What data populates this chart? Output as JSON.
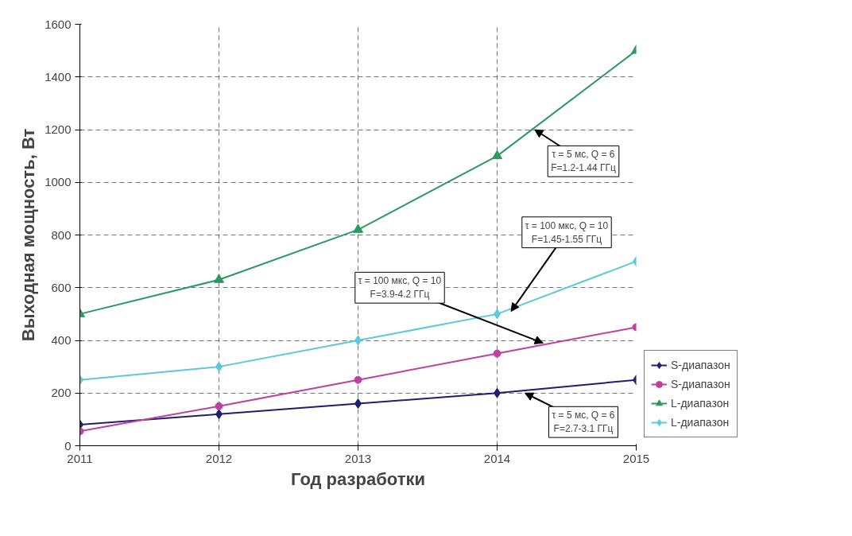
{
  "chart_data": {
    "type": "line",
    "xlabel": "Год разработки",
    "ylabel": "Выходная мощность, Вт",
    "x": [
      2011,
      2012,
      2013,
      2014,
      2015
    ],
    "series": [
      {
        "name": "S-диапазон",
        "color": "#1f1f6e",
        "marker": "diamond",
        "values": [
          80,
          120,
          160,
          200,
          250
        ]
      },
      {
        "name": "S-диапазон",
        "color": "#c040a0",
        "marker": "circle",
        "values": [
          55,
          150,
          250,
          350,
          450
        ]
      },
      {
        "name": "L-диапазон",
        "color": "#2a9a60",
        "marker": "triangle",
        "values": [
          500,
          630,
          820,
          1100,
          1500
        ]
      },
      {
        "name": "L-диапазон",
        "color": "#5bc8dc",
        "marker": "diamond",
        "values": [
          250,
          300,
          400,
          500,
          700
        ]
      }
    ],
    "xlim": [
      2011,
      2015
    ],
    "xticks": [
      2011,
      2012,
      2013,
      2014,
      2015
    ],
    "ylim": [
      0,
      1600
    ],
    "yticks": [
      0,
      200,
      400,
      600,
      800,
      1000,
      1200,
      1400,
      1600
    ],
    "grid": true,
    "legend": "bottom right",
    "line_style": "solid",
    "annotations": [
      {
        "text": "τ = 5 мс, Q = 6\nF=1.2-1.44 ГГц",
        "x": 2014.27,
        "y": 1200
      },
      {
        "text": "τ = 100 мкс, Q = 10\nF=1.45-1.55 ГГц",
        "x": 2014.1,
        "y": 510
      },
      {
        "text": "τ = 100 мкс, Q = 10\nF=3.9-4.2 ГГц",
        "x": 2014.33,
        "y": 390
      },
      {
        "text": "τ = 5 мс, Q = 6\nF=2.7-3.1 ГГц",
        "x": 2014.2,
        "y": 200
      }
    ]
  }
}
